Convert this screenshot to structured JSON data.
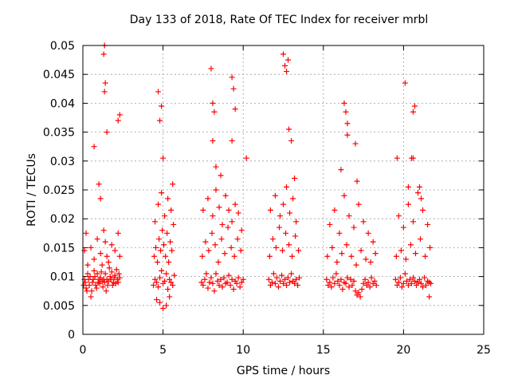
{
  "chart_data": {
    "type": "scatter",
    "title": "Day 133 of 2018, Rate Of TEC Index for receiver mrbl",
    "xlabel": "GPS time / hours",
    "ylabel": "ROTI / TECUs",
    "xlim": [
      0,
      25
    ],
    "ylim": [
      0,
      0.05
    ],
    "x_ticks": [
      0,
      5,
      10,
      15,
      20,
      25
    ],
    "x_tick_labels": [
      "0",
      "5",
      "10",
      "15",
      "20",
      "25"
    ],
    "y_ticks": [
      0,
      0.005,
      0.01,
      0.015,
      0.02,
      0.025,
      0.03,
      0.035,
      0.04,
      0.045,
      0.05
    ],
    "y_tick_labels": [
      "0",
      "0.005",
      "0.01",
      "0.015",
      "0.02",
      "0.025",
      "0.03",
      "0.035",
      "0.04",
      "0.045",
      "0.05"
    ],
    "grid": true,
    "marker": "+",
    "marker_color": "#ff0000",
    "series": [
      {
        "name": "ROTI",
        "x": [
          0.05,
          0.1,
          0.15,
          0.2,
          0.25,
          0.3,
          0.35,
          0.4,
          0.45,
          0.5,
          0.55,
          0.6,
          0.65,
          0.7,
          0.75,
          0.8,
          0.85,
          0.9,
          0.95,
          1.0,
          1.05,
          1.1,
          1.15,
          1.2,
          1.25,
          1.3,
          1.35,
          1.4,
          1.45,
          1.5,
          1.55,
          1.6,
          1.65,
          1.7,
          1.75,
          1.8,
          1.85,
          1.9,
          1.95,
          2.0,
          2.05,
          2.1,
          2.15,
          2.2,
          2.25,
          2.3,
          0.1,
          0.2,
          0.3,
          0.5,
          0.7,
          0.9,
          1.1,
          1.2,
          1.3,
          1.4,
          1.5,
          1.6,
          1.8,
          2.0,
          2.2,
          2.3,
          1.3,
          1.35,
          1.4,
          1.35,
          1.5,
          2.2,
          2.3,
          0.7,
          1.0,
          1.1,
          4.4,
          4.5,
          4.6,
          4.7,
          4.8,
          4.9,
          5.0,
          5.1,
          5.2,
          5.3,
          5.4,
          5.5,
          5.6,
          5.7,
          4.45,
          4.55,
          4.65,
          4.75,
          4.85,
          4.95,
          5.05,
          5.15,
          5.25,
          5.35,
          5.45,
          5.55,
          5.65,
          4.5,
          4.7,
          4.9,
          5.1,
          5.3,
          5.5,
          5.6,
          4.6,
          4.8,
          5.0,
          5.2,
          5.4,
          4.7,
          4.9,
          4.8,
          5.0,
          7.4,
          7.5,
          7.6,
          7.7,
          7.8,
          7.9,
          8.0,
          8.1,
          8.2,
          8.3,
          8.4,
          8.5,
          8.6,
          8.7,
          8.8,
          8.9,
          9.0,
          9.1,
          9.2,
          9.3,
          9.4,
          9.5,
          9.6,
          9.7,
          9.8,
          9.9,
          10.0,
          7.45,
          7.65,
          7.85,
          8.05,
          8.25,
          8.45,
          8.65,
          8.85,
          9.05,
          9.25,
          9.45,
          9.65,
          9.85,
          7.5,
          7.8,
          8.1,
          8.3,
          8.5,
          8.7,
          8.9,
          9.1,
          9.3,
          9.5,
          9.7,
          9.9,
          8.0,
          8.1,
          8.2,
          8.1,
          9.3,
          9.4,
          9.5,
          9.3,
          8.3,
          8.6,
          10.2,
          11.6,
          11.7,
          11.8,
          11.9,
          12.0,
          12.1,
          12.2,
          12.3,
          12.4,
          12.5,
          12.6,
          12.7,
          12.8,
          12.9,
          13.0,
          13.1,
          13.2,
          13.3,
          13.4,
          13.5,
          11.65,
          11.85,
          12.05,
          12.25,
          12.45,
          12.65,
          12.85,
          13.05,
          13.25,
          13.45,
          11.7,
          12.0,
          12.3,
          12.5,
          12.7,
          12.9,
          13.1,
          13.3,
          12.5,
          12.6,
          12.7,
          12.8,
          12.85,
          13.0,
          13.2,
          15.2,
          15.3,
          15.4,
          15.5,
          15.6,
          15.7,
          15.8,
          15.9,
          16.0,
          16.1,
          16.2,
          16.3,
          16.4,
          16.5,
          16.6,
          16.7,
          16.8,
          16.9,
          17.0,
          17.1,
          17.2,
          17.3,
          17.4,
          17.5,
          17.6,
          17.7,
          17.8,
          17.9,
          18.0,
          18.1,
          18.2,
          18.3,
          15.25,
          15.55,
          15.85,
          16.15,
          16.45,
          16.75,
          17.05,
          17.35,
          17.65,
          17.95,
          18.25,
          15.4,
          15.7,
          16.0,
          16.3,
          16.6,
          16.9,
          17.2,
          17.5,
          17.8,
          18.1,
          16.3,
          16.4,
          16.5,
          16.5,
          17.0,
          17.1,
          16.1,
          19.5,
          19.6,
          19.7,
          19.8,
          19.9,
          20.0,
          20.1,
          20.2,
          20.3,
          20.4,
          20.5,
          20.6,
          20.7,
          20.8,
          20.9,
          21.0,
          21.1,
          21.2,
          21.3,
          21.4,
          21.5,
          21.6,
          21.7,
          19.55,
          19.85,
          20.15,
          20.45,
          20.75,
          21.05,
          21.35,
          21.65,
          19.7,
          20.0,
          20.3,
          20.6,
          20.9,
          21.2,
          21.5,
          20.1,
          20.5,
          20.6,
          20.7,
          20.6,
          19.6,
          20.3,
          21.0,
          21.1,
          21.6
        ],
        "y": [
          0.0085,
          0.0095,
          0.009,
          0.008,
          0.0075,
          0.0105,
          0.0095,
          0.0085,
          0.01,
          0.0065,
          0.0075,
          0.009,
          0.0095,
          0.011,
          0.01,
          0.0085,
          0.008,
          0.0105,
          0.009,
          0.0095,
          0.0088,
          0.0098,
          0.0108,
          0.0092,
          0.0082,
          0.0095,
          0.009,
          0.0105,
          0.0075,
          0.0095,
          0.0085,
          0.0092,
          0.0115,
          0.01,
          0.0095,
          0.0108,
          0.0085,
          0.009,
          0.0098,
          0.0102,
          0.0088,
          0.0112,
          0.0095,
          0.009,
          0.0105,
          0.0098,
          0.0145,
          0.0175,
          0.012,
          0.015,
          0.013,
          0.0165,
          0.014,
          0.012,
          0.018,
          0.016,
          0.0135,
          0.0125,
          0.0155,
          0.0145,
          0.0175,
          0.0135,
          0.0485,
          0.05,
          0.0435,
          0.042,
          0.035,
          0.037,
          0.038,
          0.0325,
          0.026,
          0.0235,
          0.0085,
          0.0095,
          0.009,
          0.0082,
          0.0098,
          0.011,
          0.0088,
          0.0092,
          0.0105,
          0.0078,
          0.0095,
          0.009,
          0.0085,
          0.0102,
          0.0135,
          0.015,
          0.0125,
          0.0165,
          0.0145,
          0.018,
          0.0155,
          0.0135,
          0.0175,
          0.0125,
          0.016,
          0.0145,
          0.019,
          0.0195,
          0.0225,
          0.0245,
          0.0205,
          0.0235,
          0.0215,
          0.026,
          0.006,
          0.0055,
          0.0045,
          0.005,
          0.0065,
          0.042,
          0.0395,
          0.037,
          0.0305,
          0.009,
          0.0085,
          0.0095,
          0.0105,
          0.008,
          0.009,
          0.0098,
          0.0088,
          0.0075,
          0.0105,
          0.0092,
          0.0085,
          0.0095,
          0.0082,
          0.0098,
          0.0088,
          0.009,
          0.0102,
          0.0085,
          0.0095,
          0.0078,
          0.0092,
          0.0088,
          0.0098,
          0.0082,
          0.009,
          0.0095,
          0.0135,
          0.016,
          0.0145,
          0.0175,
          0.0155,
          0.0125,
          0.0165,
          0.014,
          0.0185,
          0.015,
          0.0135,
          0.0165,
          0.0145,
          0.0215,
          0.0235,
          0.0205,
          0.025,
          0.022,
          0.019,
          0.024,
          0.0215,
          0.0195,
          0.0225,
          0.021,
          0.018,
          0.046,
          0.04,
          0.0385,
          0.0335,
          0.0445,
          0.0425,
          0.039,
          0.0335,
          0.029,
          0.0275,
          0.0305,
          0.0095,
          0.0085,
          0.009,
          0.0105,
          0.0088,
          0.0098,
          0.0082,
          0.0092,
          0.0102,
          0.0088,
          0.0095,
          0.0085,
          0.0098,
          0.009,
          0.0105,
          0.0092,
          0.0088,
          0.0095,
          0.0085,
          0.0098,
          0.0135,
          0.0165,
          0.015,
          0.0185,
          0.0145,
          0.0175,
          0.0155,
          0.0135,
          0.017,
          0.0145,
          0.0215,
          0.024,
          0.0205,
          0.0225,
          0.0255,
          0.021,
          0.0235,
          0.0195,
          0.0485,
          0.0465,
          0.0455,
          0.0475,
          0.0355,
          0.0335,
          0.027,
          0.0095,
          0.0085,
          0.009,
          0.0082,
          0.0098,
          0.0088,
          0.0105,
          0.0092,
          0.0085,
          0.0095,
          0.0078,
          0.009,
          0.0088,
          0.0098,
          0.0082,
          0.0095,
          0.0085,
          0.0092,
          0.0075,
          0.0068,
          0.0072,
          0.0065,
          0.0078,
          0.0088,
          0.0095,
          0.0085,
          0.009,
          0.0082,
          0.0098,
          0.0088,
          0.0092,
          0.0085,
          0.0135,
          0.015,
          0.0125,
          0.014,
          0.0155,
          0.0135,
          0.012,
          0.0145,
          0.013,
          0.0125,
          0.014,
          0.019,
          0.0215,
          0.0175,
          0.024,
          0.0205,
          0.0185,
          0.0225,
          0.0195,
          0.0175,
          0.016,
          0.04,
          0.0385,
          0.0365,
          0.0345,
          0.033,
          0.0265,
          0.0285,
          0.0095,
          0.0085,
          0.009,
          0.0098,
          0.0082,
          0.0088,
          0.0105,
          0.0092,
          0.0085,
          0.0095,
          0.0088,
          0.0098,
          0.0092,
          0.0085,
          0.009,
          0.0095,
          0.0088,
          0.0082,
          0.0098,
          0.0085,
          0.0092,
          0.009,
          0.0088,
          0.0135,
          0.0145,
          0.013,
          0.0155,
          0.014,
          0.0165,
          0.0135,
          0.015,
          0.0205,
          0.0185,
          0.0225,
          0.0195,
          0.0245,
          0.0215,
          0.019,
          0.0435,
          0.0305,
          0.0385,
          0.0395,
          0.0305,
          0.0305,
          0.0255,
          0.0255,
          0.0235,
          0.0065
        ]
      }
    ]
  }
}
